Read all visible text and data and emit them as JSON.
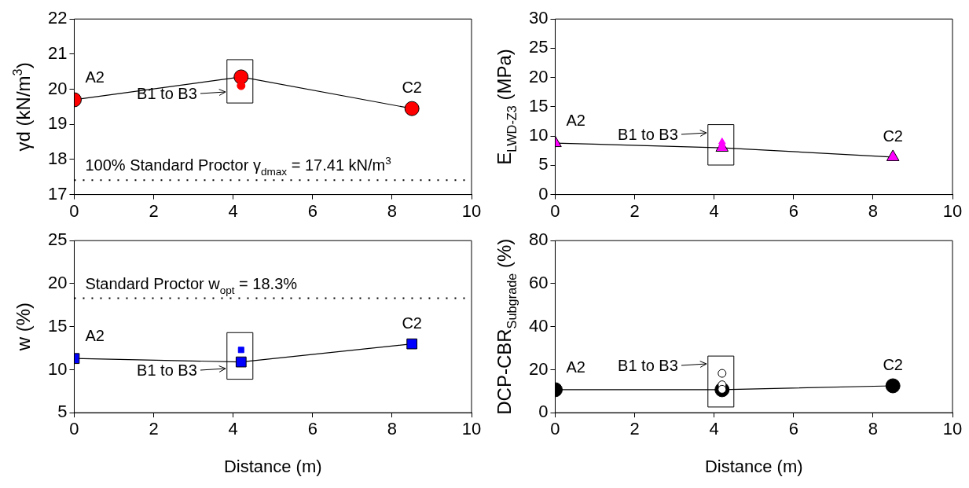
{
  "chart_data": [
    {
      "type": "line",
      "ylabel": "γd (kN/m$^{3}$)",
      "xlim": [
        0,
        10
      ],
      "xticks": [
        0,
        2,
        4,
        6,
        8,
        10
      ],
      "ylim": [
        17,
        22
      ],
      "yticks": [
        17,
        18,
        19,
        20,
        21,
        22
      ],
      "grid": false,
      "legend": false,
      "marker": "circle",
      "series": [
        {
          "type": "line",
          "color": "#ff0000",
          "x": [
            0,
            4.2,
            8.5
          ],
          "values": [
            19.7,
            20.35,
            19.45
          ]
        },
        {
          "type": "scatter",
          "color": "#ff0000",
          "x": [
            4.2
          ],
          "values": [
            20.1
          ]
        }
      ],
      "ref_lines": [
        {
          "axis": "y",
          "value": 17.41,
          "label": "100% Standard Proctor γ$_{dmax}$ = 17.41 kN/m$^{3}$",
          "line_style": "dotted"
        }
      ],
      "annotations": [
        {
          "text": "A2",
          "x": 0,
          "y": 19.7
        },
        {
          "text": "B1 to B3",
          "x": 4.2,
          "y": 20.35
        },
        {
          "text": "C2",
          "x": 8.5,
          "y": 19.45
        }
      ]
    },
    {
      "type": "line",
      "ylabel": "E$_{LWD-Z3}$ (MPa)",
      "xlim": [
        0,
        10
      ],
      "xticks": [
        0,
        2,
        4,
        6,
        8,
        10
      ],
      "ylim": [
        0,
        30
      ],
      "yticks": [
        0,
        5,
        10,
        15,
        20,
        25,
        30
      ],
      "grid": false,
      "legend": false,
      "marker": "triangle",
      "series": [
        {
          "type": "line",
          "color": "#ff00ff",
          "x": [
            0,
            4.2,
            8.5
          ],
          "values": [
            8.8,
            8.0,
            6.4
          ]
        },
        {
          "type": "scatter",
          "color": "#ff00ff",
          "x": [
            4.2,
            4.2
          ],
          "values": [
            9.0,
            8.5
          ]
        }
      ],
      "annotations": [
        {
          "text": "A2",
          "x": 0,
          "y": 8.8
        },
        {
          "text": "B1 to B3",
          "x": 4.2,
          "y": 8.0
        },
        {
          "text": "C2",
          "x": 8.5,
          "y": 6.4
        }
      ]
    },
    {
      "type": "line",
      "xlabel": "Distance (m)",
      "ylabel": "w (%)",
      "xlim": [
        0,
        10
      ],
      "xticks": [
        0,
        2,
        4,
        6,
        8,
        10
      ],
      "ylim": [
        5,
        25
      ],
      "yticks": [
        5,
        10,
        15,
        20,
        25
      ],
      "grid": false,
      "legend": false,
      "marker": "square",
      "series": [
        {
          "type": "line",
          "color": "#0000ff",
          "x": [
            0,
            4.2,
            8.5
          ],
          "values": [
            11.3,
            10.9,
            13.0
          ]
        },
        {
          "type": "scatter",
          "color": "#0000ff",
          "x": [
            4.2
          ],
          "values": [
            12.3
          ]
        }
      ],
      "ref_lines": [
        {
          "axis": "y",
          "value": 18.3,
          "label": "Standard Proctor w$_{opt}$ = 18.3%",
          "line_style": "dotted"
        }
      ],
      "annotations": [
        {
          "text": "A2",
          "x": 0,
          "y": 11.3
        },
        {
          "text": "B1 to B3",
          "x": 4.2,
          "y": 10.9
        },
        {
          "text": "C2",
          "x": 8.5,
          "y": 13.0
        }
      ]
    },
    {
      "type": "line",
      "xlabel": "Distance (m)",
      "ylabel": "DCP-CBR$_{Subgrade}$ (%)",
      "xlim": [
        0,
        10
      ],
      "xticks": [
        0,
        2,
        4,
        6,
        8,
        10
      ],
      "ylim": [
        0,
        80
      ],
      "yticks": [
        0,
        20,
        40,
        60,
        80
      ],
      "grid": false,
      "legend": false,
      "marker": "circle",
      "series": [
        {
          "type": "line",
          "color": "#000000",
          "x": [
            0,
            4.2,
            8.5
          ],
          "values": [
            10.7,
            10.7,
            12.5
          ]
        },
        {
          "type": "scatter",
          "color": "#ffffff",
          "x": [
            4.2,
            4.2,
            4.2
          ],
          "values": [
            18.3,
            13.0,
            10.9
          ]
        }
      ],
      "annotations": [
        {
          "text": "A2",
          "x": 0,
          "y": 10.7
        },
        {
          "text": "B1 to B3",
          "x": 4.2,
          "y": 10.7
        },
        {
          "text": "C2",
          "x": 8.5,
          "y": 12.5
        }
      ]
    }
  ]
}
